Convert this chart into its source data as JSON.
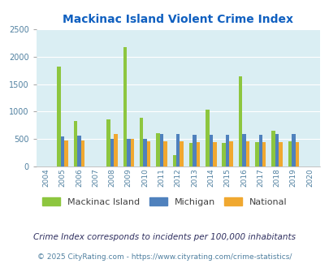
{
  "title": "Mackinac Island Violent Crime Index",
  "years": [
    2004,
    2005,
    2006,
    2007,
    2008,
    2009,
    2010,
    2011,
    2012,
    2013,
    2014,
    2015,
    2016,
    2017,
    2018,
    2019,
    2020
  ],
  "mackinac": [
    0,
    1820,
    820,
    0,
    850,
    2185,
    880,
    610,
    200,
    420,
    1030,
    420,
    1650,
    440,
    645,
    455,
    0
  ],
  "michigan": [
    0,
    545,
    560,
    0,
    505,
    500,
    500,
    590,
    590,
    575,
    580,
    575,
    590,
    580,
    590,
    585,
    0
  ],
  "national": [
    0,
    475,
    475,
    0,
    590,
    500,
    450,
    450,
    450,
    445,
    440,
    450,
    450,
    445,
    445,
    445,
    0
  ],
  "bar_colors": {
    "mackinac": "#8dc63f",
    "michigan": "#4f81bd",
    "national": "#f0a830"
  },
  "bg_color": "#daeef3",
  "ylim": [
    0,
    2500
  ],
  "yticks": [
    0,
    500,
    1000,
    1500,
    2000,
    2500
  ],
  "footnote1": "Crime Index corresponds to incidents per 100,000 inhabitants",
  "footnote2": "© 2025 CityRating.com - https://www.cityrating.com/crime-statistics/",
  "bar_width": 0.22,
  "title_color": "#1060c0",
  "footnote1_color": "#303060",
  "footnote2_color": "#5080a0"
}
